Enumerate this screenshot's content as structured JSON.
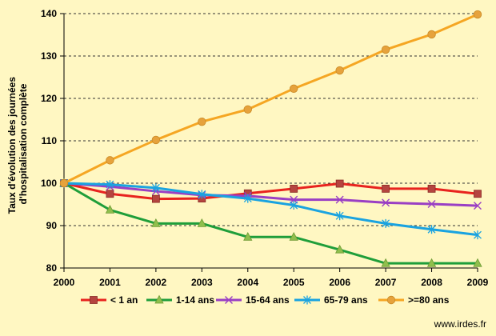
{
  "chart_data": {
    "type": "line",
    "title": "",
    "xlabel": "",
    "ylabel_lines": [
      "Taux d'évolution des journées",
      "d'hospitalisation complète"
    ],
    "x": [
      2000,
      2001,
      2002,
      2003,
      2004,
      2005,
      2006,
      2007,
      2008,
      2009
    ],
    "ylim": [
      80,
      140
    ],
    "yticks": [
      80,
      90,
      100,
      110,
      120,
      130,
      140
    ],
    "grid": "horizontal dashed",
    "legend_position": "bottom",
    "series": [
      {
        "name": "< 1 an",
        "color": "#e8231e",
        "marker": "square",
        "values": [
          100,
          97.5,
          96.3,
          96.4,
          97.6,
          98.7,
          99.9,
          98.7,
          98.7,
          97.5
        ]
      },
      {
        "name": "1-14 ans",
        "color": "#1f9e3a",
        "marker": "triangle",
        "values": [
          100,
          93.7,
          90.5,
          90.5,
          87.3,
          87.3,
          84.3,
          81.1,
          81.1,
          81.1
        ]
      },
      {
        "name": "15-64 ans",
        "color": "#9a3fc4",
        "marker": "x",
        "values": [
          100,
          99.2,
          98.1,
          97.2,
          97.0,
          96.1,
          96.1,
          95.4,
          95.1,
          94.7
        ]
      },
      {
        "name": "65-79 ans",
        "color": "#1aa3e0",
        "marker": "star",
        "values": [
          100,
          99.7,
          98.9,
          97.4,
          96.4,
          94.8,
          92.3,
          90.5,
          89.1,
          87.8
        ]
      },
      {
        "name": ">=80 ans",
        "color": "#f5a623",
        "marker": "circle",
        "values": [
          100,
          105.4,
          110.2,
          114.5,
          117.4,
          122.3,
          126.6,
          131.5,
          135.1,
          139.8
        ]
      }
    ]
  },
  "credit": "www.irdes.fr"
}
